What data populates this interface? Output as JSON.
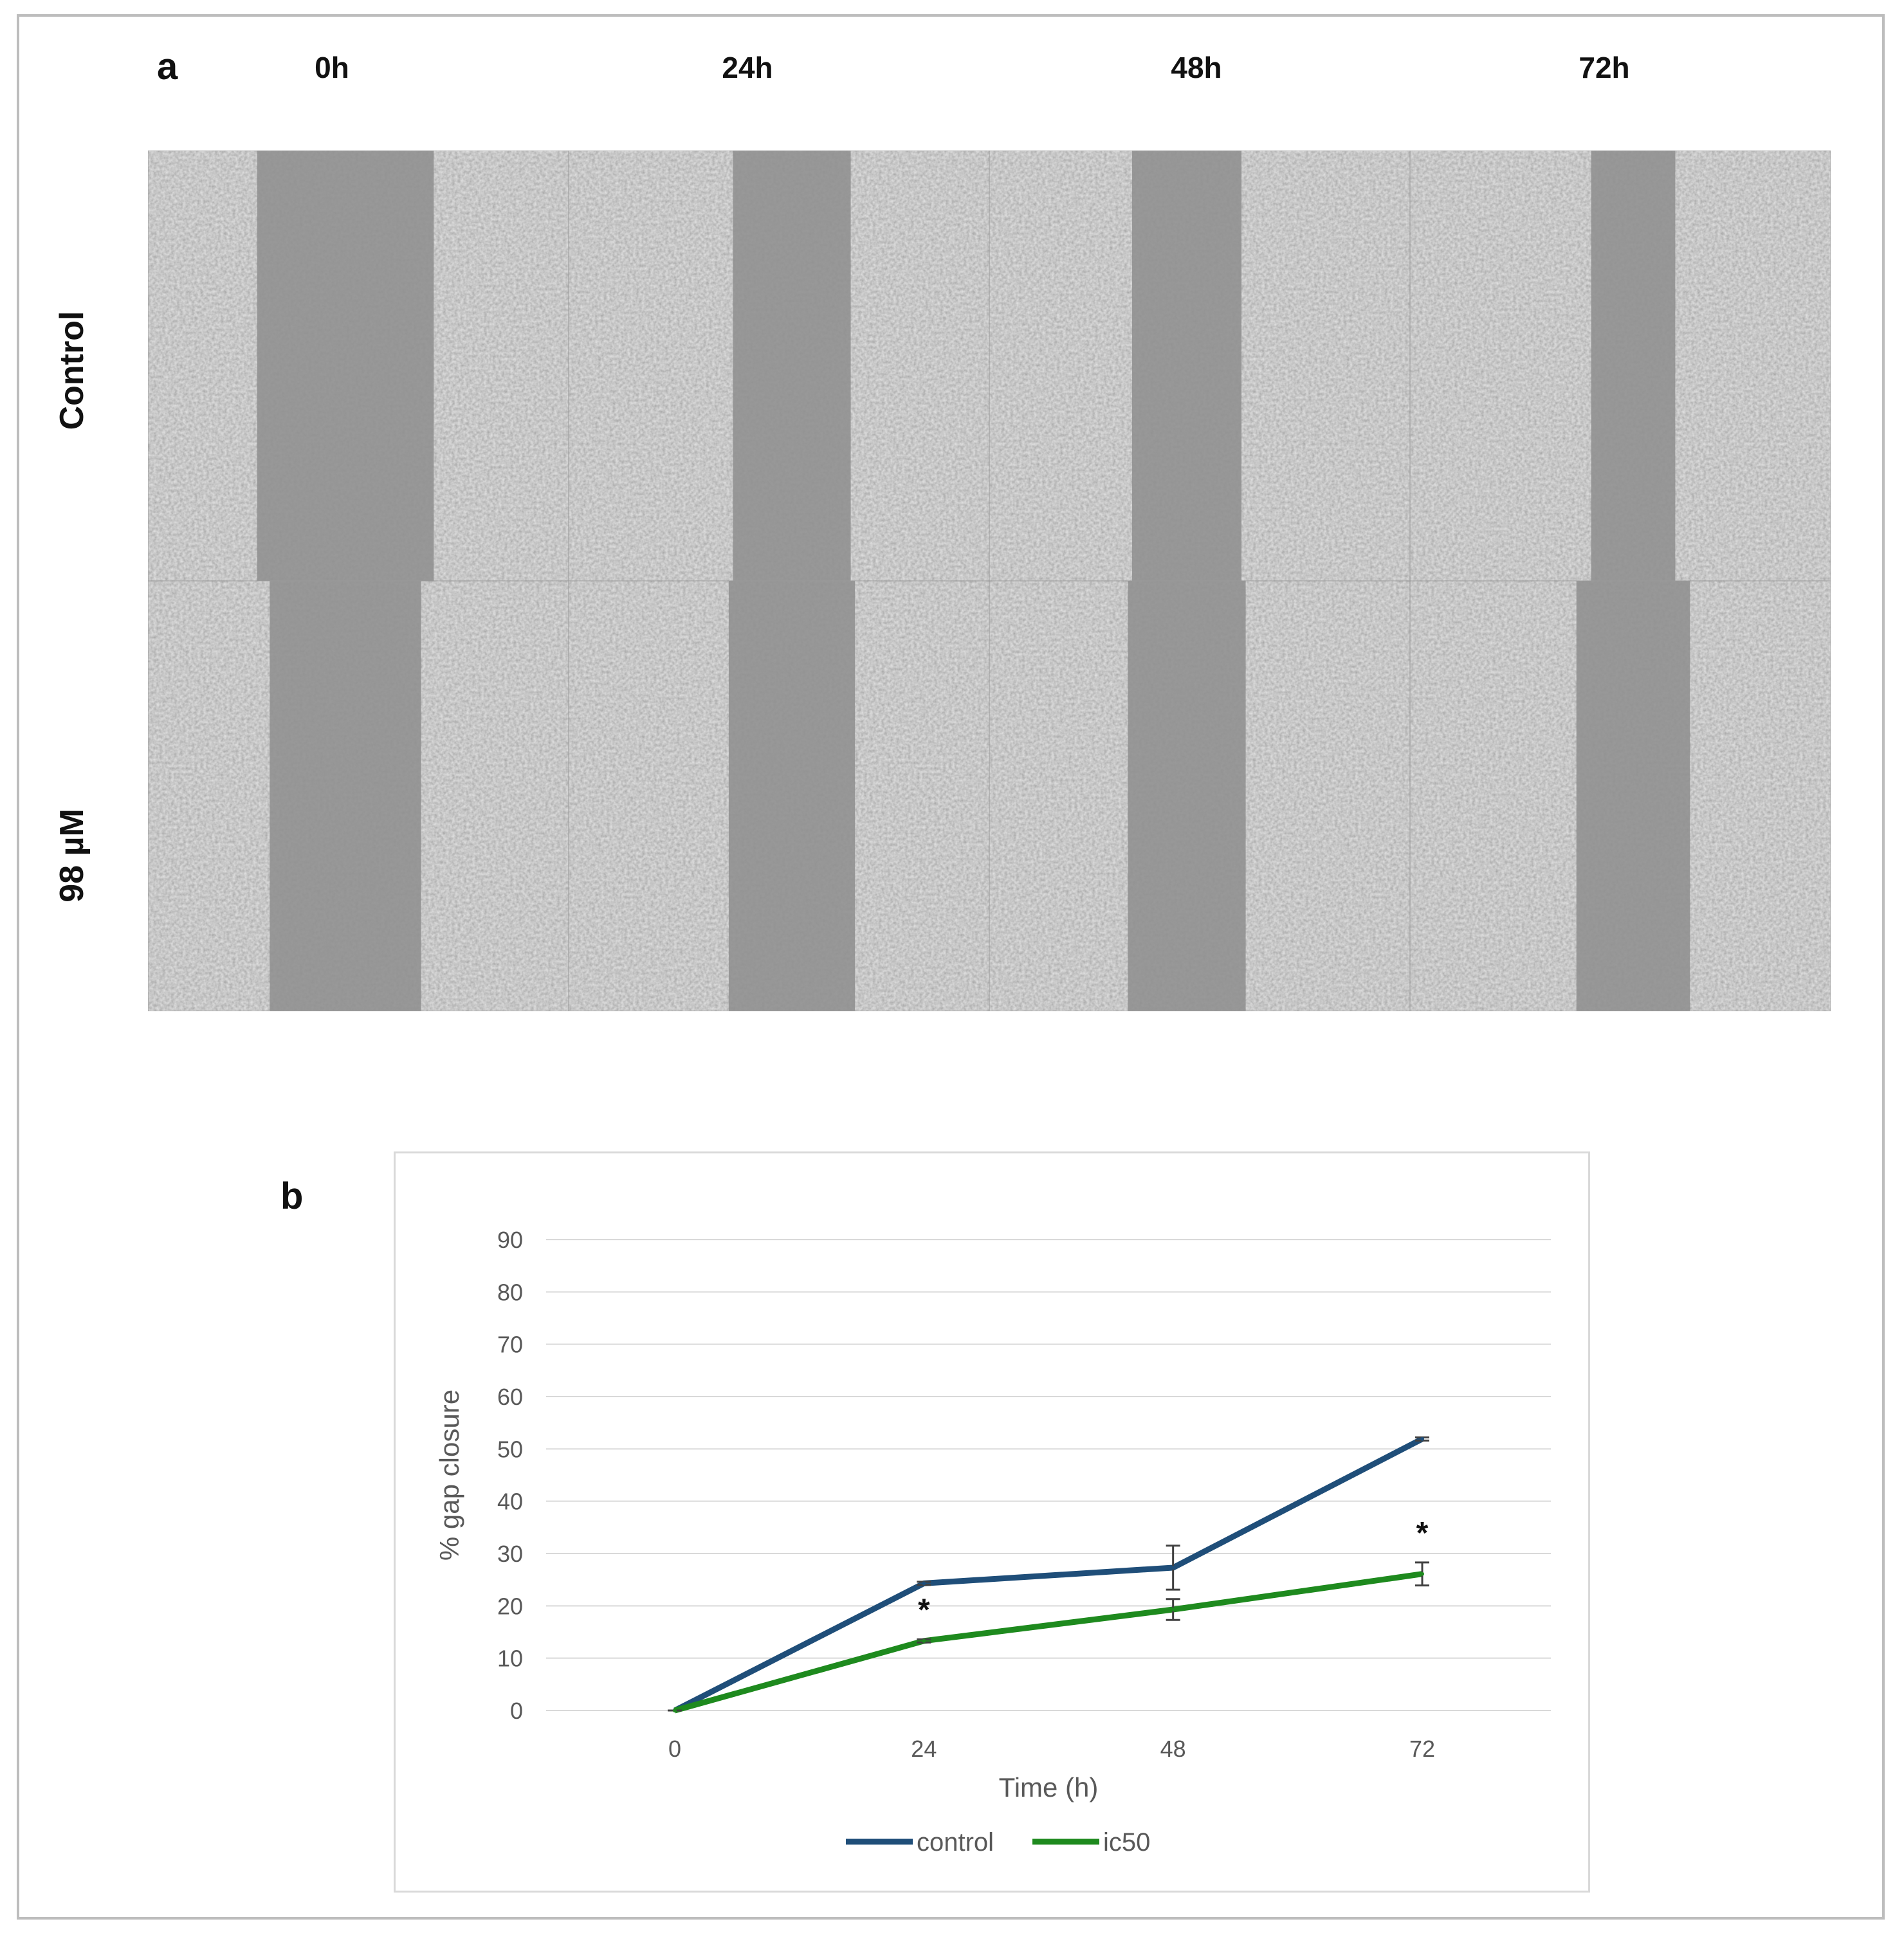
{
  "figure": {
    "panel_a_label": "a",
    "panel_b_label": "b",
    "time_points": [
      "0h",
      "24h",
      "48h",
      "72h"
    ],
    "rows": [
      "Control",
      "98 µM"
    ]
  },
  "images": [
    {
      "row": "Control",
      "time": "0h",
      "gap_fraction": 0.42
    },
    {
      "row": "Control",
      "time": "24h",
      "gap_fraction": 0.28
    },
    {
      "row": "Control",
      "time": "48h",
      "gap_fraction": 0.26
    },
    {
      "row": "Control",
      "time": "72h",
      "gap_fraction": 0.2
    },
    {
      "row": "98 µM",
      "time": "0h",
      "gap_fraction": 0.36
    },
    {
      "row": "98 µM",
      "time": "24h",
      "gap_fraction": 0.3
    },
    {
      "row": "98 µM",
      "time": "48h",
      "gap_fraction": 0.28
    },
    {
      "row": "98 µM",
      "time": "72h",
      "gap_fraction": 0.27
    }
  ],
  "chart_data": {
    "type": "line",
    "title": "",
    "xlabel": "Time (h)",
    "ylabel": "% gap closure",
    "x": [
      0,
      24,
      48,
      72
    ],
    "x_tick_labels": [
      "0",
      "24",
      "48",
      "72"
    ],
    "ylim": [
      0,
      90
    ],
    "y_ticks": [
      0,
      10,
      20,
      30,
      40,
      50,
      60,
      70,
      80,
      90
    ],
    "grid": true,
    "legend_position": "bottom",
    "series": [
      {
        "name": "control",
        "color": "#1f4e79",
        "values": [
          0,
          24.3,
          27.3,
          51.9
        ],
        "errors": [
          0,
          0.3,
          4.2,
          0.3
        ]
      },
      {
        "name": "ic50",
        "color": "#1e8a1e",
        "values": [
          0,
          13.3,
          19.3,
          26.1
        ],
        "errors": [
          0,
          0.3,
          2.0,
          2.2
        ]
      }
    ],
    "annotations": [
      {
        "text": "*",
        "x": 24,
        "series": "ic50"
      },
      {
        "text": "*",
        "x": 72,
        "series": "ic50"
      }
    ]
  }
}
